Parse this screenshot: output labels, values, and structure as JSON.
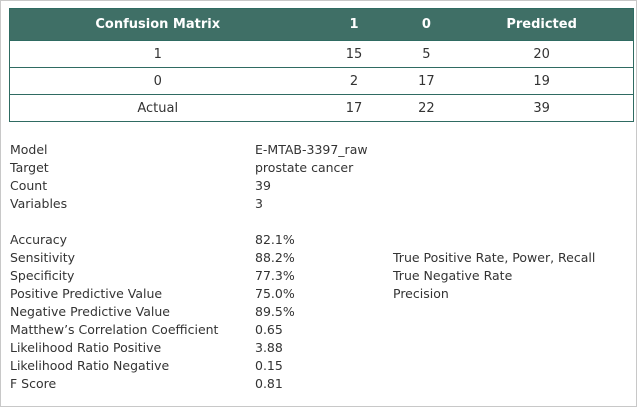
{
  "confusion_matrix": {
    "header": [
      "Confusion Matrix",
      "1",
      "0",
      "Predicted"
    ],
    "rows": [
      [
        "1",
        "15",
        "5",
        "20"
      ],
      [
        "0",
        "2",
        "17",
        "19"
      ],
      [
        "Actual",
        "17",
        "22",
        "39"
      ]
    ]
  },
  "info": [
    {
      "label": "Model",
      "value": "E-MTAB-3397_raw"
    },
    {
      "label": "Target",
      "value": "prostate cancer"
    },
    {
      "label": "Count",
      "value": "39"
    },
    {
      "label": "Variables",
      "value": "3"
    }
  ],
  "metrics": [
    {
      "label": "Accuracy",
      "value": "82.1%",
      "note": ""
    },
    {
      "label": "Sensitivity",
      "value": "88.2%",
      "note": "True Positive Rate, Power, Recall"
    },
    {
      "label": "Specificity",
      "value": "77.3%",
      "note": "True Negative Rate"
    },
    {
      "label": "Positive Predictive Value",
      "value": "75.0%",
      "note": "Precision"
    },
    {
      "label": "Negative Predictive Value",
      "value": "89.5%",
      "note": ""
    },
    {
      "label": "Matthew’s Correlation Coefficient",
      "value": "0.65",
      "note": ""
    },
    {
      "label": "Likelihood Ratio Positive",
      "value": "3.88",
      "note": ""
    },
    {
      "label": "Likelihood Ratio Negative",
      "value": "0.15",
      "note": ""
    },
    {
      "label": "F Score",
      "value": "0.81",
      "note": ""
    }
  ],
  "colors": {
    "header_bg": "#3f6f66",
    "border": "#2f6b62"
  }
}
